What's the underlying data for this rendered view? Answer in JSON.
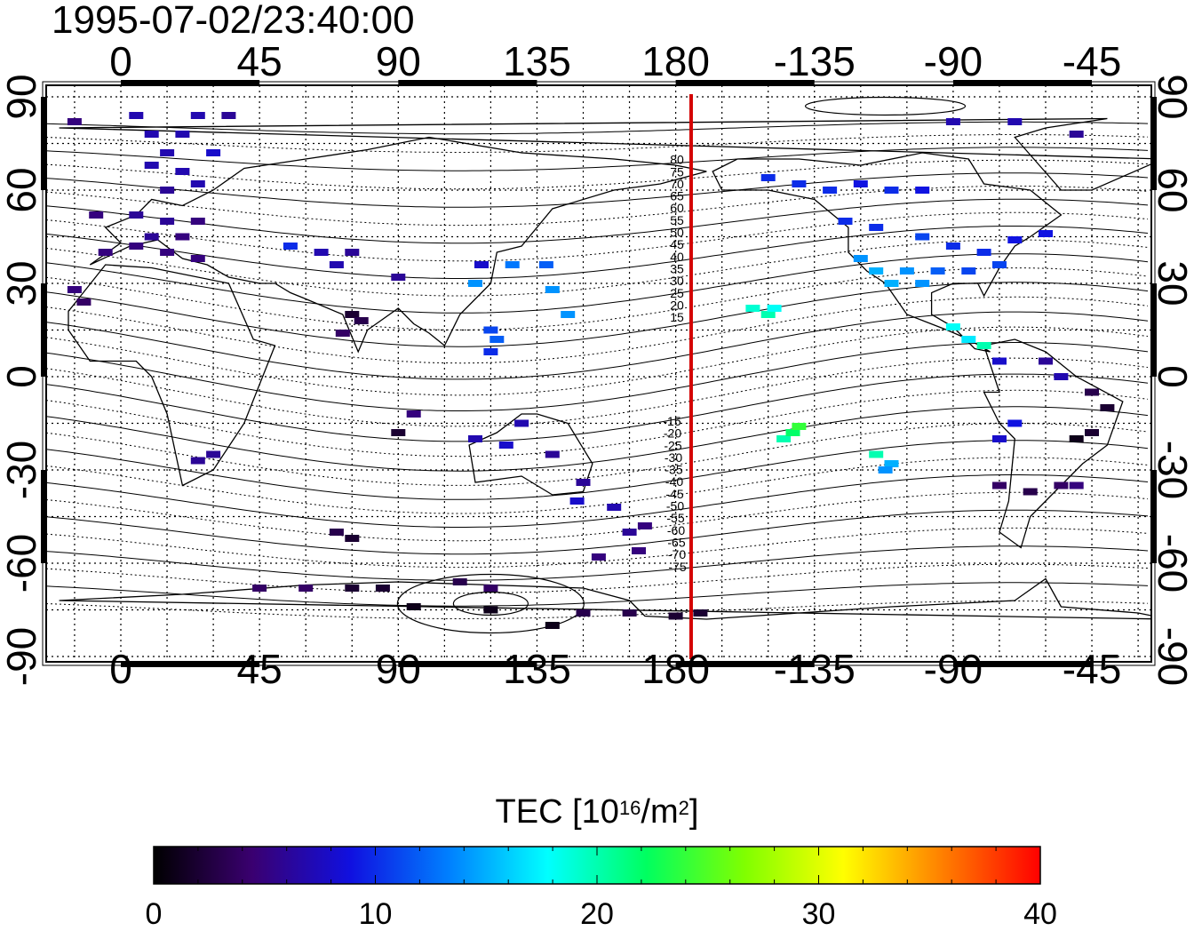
{
  "title": "1995-07-02/23:40:00",
  "map": {
    "lon_ticks_top": [
      "0",
      "45",
      "90",
      "135",
      "180",
      "-135",
      "-90",
      "-45"
    ],
    "lon_ticks_bottom": [
      "0",
      "45",
      "90",
      "135",
      "180",
      "-135",
      "-90",
      "-45"
    ],
    "lat_ticks_left": [
      "90",
      "60",
      "30",
      "0",
      "-30",
      "-60",
      "-90"
    ],
    "lat_ticks_right": [
      "90",
      "60",
      "30",
      "0",
      "-30",
      "-60",
      "-90"
    ],
    "terminator_color": "#d40000",
    "contour_labels": [
      "80",
      "75",
      "70",
      "65",
      "60",
      "55",
      "50",
      "45",
      "40",
      "35",
      "30",
      "25",
      "20",
      "15",
      "-15",
      "-20",
      "-25",
      "-30",
      "-35",
      "-40",
      "-45",
      "-50",
      "-55",
      "-60",
      "-65",
      "-70",
      "-75"
    ]
  },
  "colorbar": {
    "title_prefix": "TEC  [10",
    "title_exp1": "16",
    "title_mid": "/m",
    "title_exp2": "2",
    "title_suffix": "]",
    "ticks": [
      "0",
      "10",
      "20",
      "30",
      "40"
    ],
    "stops": [
      "#000000",
      "#3a0070",
      "#1010e0",
      "#0080ff",
      "#00ffff",
      "#00ff60",
      "#80ff00",
      "#ffff00",
      "#ff8000",
      "#ff0000"
    ]
  },
  "chart_data": {
    "type": "scatter",
    "title": "1995-07-02/23:40:00",
    "xlabel": "",
    "ylabel": "",
    "xlim": [
      -20,
      340
    ],
    "ylim": [
      -90,
      90
    ],
    "grid": true,
    "colorbar_label": "TEC [10^16/m^2]",
    "colorbar_range": [
      0,
      40
    ],
    "terminator_lon": 185,
    "points": [
      {
        "lon": -15,
        "lat": 82,
        "tec": 5
      },
      {
        "lon": 5,
        "lat": 84,
        "tec": 7
      },
      {
        "lon": 25,
        "lat": 84,
        "tec": 7
      },
      {
        "lon": 35,
        "lat": 84,
        "tec": 6
      },
      {
        "lon": 10,
        "lat": 78,
        "tec": 7
      },
      {
        "lon": 20,
        "lat": 78,
        "tec": 7
      },
      {
        "lon": 15,
        "lat": 72,
        "tec": 7
      },
      {
        "lon": 30,
        "lat": 72,
        "tec": 8
      },
      {
        "lon": 10,
        "lat": 68,
        "tec": 7
      },
      {
        "lon": 20,
        "lat": 66,
        "tec": 7
      },
      {
        "lon": 25,
        "lat": 62,
        "tec": 7
      },
      {
        "lon": 15,
        "lat": 60,
        "tec": 6
      },
      {
        "lon": -8,
        "lat": 52,
        "tec": 5
      },
      {
        "lon": 5,
        "lat": 52,
        "tec": 6
      },
      {
        "lon": 15,
        "lat": 50,
        "tec": 6
      },
      {
        "lon": 25,
        "lat": 50,
        "tec": 5
      },
      {
        "lon": 10,
        "lat": 45,
        "tec": 6
      },
      {
        "lon": 20,
        "lat": 45,
        "tec": 5
      },
      {
        "lon": 5,
        "lat": 42,
        "tec": 5
      },
      {
        "lon": 15,
        "lat": 40,
        "tec": 5
      },
      {
        "lon": -5,
        "lat": 40,
        "tec": 5
      },
      {
        "lon": 25,
        "lat": 38,
        "tec": 5
      },
      {
        "lon": -15,
        "lat": 28,
        "tec": 5
      },
      {
        "lon": -12,
        "lat": 24,
        "tec": 4
      },
      {
        "lon": 55,
        "lat": 42,
        "tec": 10
      },
      {
        "lon": 65,
        "lat": 40,
        "tec": 7
      },
      {
        "lon": 70,
        "lat": 36,
        "tec": 7
      },
      {
        "lon": 75,
        "lat": 40,
        "tec": 6
      },
      {
        "lon": 90,
        "lat": 32,
        "tec": 6
      },
      {
        "lon": 75,
        "lat": 20,
        "tec": 2
      },
      {
        "lon": 78,
        "lat": 18,
        "tec": 3
      },
      {
        "lon": 72,
        "lat": 14,
        "tec": 4
      },
      {
        "lon": 117,
        "lat": 36,
        "tec": 8
      },
      {
        "lon": 127,
        "lat": 36,
        "tec": 13
      },
      {
        "lon": 138,
        "lat": 36,
        "tec": 12
      },
      {
        "lon": 115,
        "lat": 30,
        "tec": 14
      },
      {
        "lon": 140,
        "lat": 28,
        "tec": 14
      },
      {
        "lon": 145,
        "lat": 20,
        "tec": 14
      },
      {
        "lon": 120,
        "lat": 15,
        "tec": 11
      },
      {
        "lon": 122,
        "lat": 12,
        "tec": 12
      },
      {
        "lon": 120,
        "lat": 8,
        "tec": 10
      },
      {
        "lon": 95,
        "lat": -12,
        "tec": 5
      },
      {
        "lon": 90,
        "lat": -18,
        "tec": 2
      },
      {
        "lon": 115,
        "lat": -20,
        "tec": 7
      },
      {
        "lon": 125,
        "lat": -22,
        "tec": 8
      },
      {
        "lon": 130,
        "lat": -15,
        "tec": 7
      },
      {
        "lon": 140,
        "lat": -25,
        "tec": 6
      },
      {
        "lon": 150,
        "lat": -34,
        "tec": 6
      },
      {
        "lon": 148,
        "lat": -40,
        "tec": 8
      },
      {
        "lon": 160,
        "lat": -42,
        "tec": 7
      },
      {
        "lon": 165,
        "lat": -50,
        "tec": 6
      },
      {
        "lon": 170,
        "lat": -48,
        "tec": 5
      },
      {
        "lon": 168,
        "lat": -56,
        "tec": 5
      },
      {
        "lon": 155,
        "lat": -58,
        "tec": 5
      },
      {
        "lon": 75,
        "lat": -52,
        "tec": 2
      },
      {
        "lon": 70,
        "lat": -50,
        "tec": 3
      },
      {
        "lon": 25,
        "lat": -27,
        "tec": 6
      },
      {
        "lon": 30,
        "lat": -25,
        "tec": 6
      },
      {
        "lon": 45,
        "lat": -68,
        "tec": 4
      },
      {
        "lon": 60,
        "lat": -68,
        "tec": 4
      },
      {
        "lon": 75,
        "lat": -68,
        "tec": 2
      },
      {
        "lon": 85,
        "lat": -68,
        "tec": 2
      },
      {
        "lon": 110,
        "lat": -66,
        "tec": 3
      },
      {
        "lon": 120,
        "lat": -68,
        "tec": 4
      },
      {
        "lon": 95,
        "lat": -74,
        "tec": 1
      },
      {
        "lon": 120,
        "lat": -75,
        "tec": 1
      },
      {
        "lon": 140,
        "lat": -80,
        "tec": 1
      },
      {
        "lon": 150,
        "lat": -76,
        "tec": 3
      },
      {
        "lon": 165,
        "lat": -76,
        "tec": 3
      },
      {
        "lon": 180,
        "lat": -77,
        "tec": 2
      },
      {
        "lon": 188,
        "lat": -76,
        "tec": 2
      },
      {
        "lon": -155,
        "lat": 22,
        "tec": 19
      },
      {
        "lon": -150,
        "lat": 20,
        "tec": 20
      },
      {
        "lon": -148,
        "lat": 22,
        "tec": 18
      },
      {
        "lon": -145,
        "lat": -20,
        "tec": 20
      },
      {
        "lon": -142,
        "lat": -18,
        "tec": 22
      },
      {
        "lon": -140,
        "lat": -16,
        "tec": 24
      },
      {
        "lon": -115,
        "lat": -25,
        "tec": 20
      },
      {
        "lon": -110,
        "lat": -28,
        "tec": 15
      },
      {
        "lon": -112,
        "lat": -30,
        "tec": 14
      },
      {
        "lon": -150,
        "lat": 64,
        "tec": 10
      },
      {
        "lon": -140,
        "lat": 62,
        "tec": 10
      },
      {
        "lon": -130,
        "lat": 60,
        "tec": 10
      },
      {
        "lon": -120,
        "lat": 62,
        "tec": 9
      },
      {
        "lon": -110,
        "lat": 60,
        "tec": 10
      },
      {
        "lon": -100,
        "lat": 60,
        "tec": 9
      },
      {
        "lon": -90,
        "lat": 82,
        "tec": 7
      },
      {
        "lon": -70,
        "lat": 82,
        "tec": 7
      },
      {
        "lon": -50,
        "lat": 78,
        "tec": 6
      },
      {
        "lon": -125,
        "lat": 50,
        "tec": 10
      },
      {
        "lon": -115,
        "lat": 48,
        "tec": 10
      },
      {
        "lon": -100,
        "lat": 45,
        "tec": 11
      },
      {
        "lon": -90,
        "lat": 42,
        "tec": 10
      },
      {
        "lon": -80,
        "lat": 40,
        "tec": 10
      },
      {
        "lon": -70,
        "lat": 44,
        "tec": 9
      },
      {
        "lon": -60,
        "lat": 46,
        "tec": 9
      },
      {
        "lon": -120,
        "lat": 38,
        "tec": 14
      },
      {
        "lon": -115,
        "lat": 34,
        "tec": 15
      },
      {
        "lon": -105,
        "lat": 34,
        "tec": 14
      },
      {
        "lon": -95,
        "lat": 34,
        "tec": 12
      },
      {
        "lon": -85,
        "lat": 34,
        "tec": 11
      },
      {
        "lon": -75,
        "lat": 36,
        "tec": 11
      },
      {
        "lon": -110,
        "lat": 30,
        "tec": 15
      },
      {
        "lon": -100,
        "lat": 30,
        "tec": 14
      },
      {
        "lon": -90,
        "lat": 16,
        "tec": 18
      },
      {
        "lon": -85,
        "lat": 12,
        "tec": 17
      },
      {
        "lon": -80,
        "lat": 10,
        "tec": 20
      },
      {
        "lon": -75,
        "lat": 5,
        "tec": 8
      },
      {
        "lon": -60,
        "lat": 5,
        "tec": 6
      },
      {
        "lon": -55,
        "lat": 0,
        "tec": 7
      },
      {
        "lon": -45,
        "lat": -5,
        "tec": 3
      },
      {
        "lon": -40,
        "lat": -10,
        "tec": 2
      },
      {
        "lon": -70,
        "lat": -15,
        "tec": 9
      },
      {
        "lon": -75,
        "lat": -20,
        "tec": 8
      },
      {
        "lon": -45,
        "lat": -18,
        "tec": 2
      },
      {
        "lon": -50,
        "lat": -20,
        "tec": 1
      },
      {
        "lon": -75,
        "lat": -35,
        "tec": 4
      },
      {
        "lon": -65,
        "lat": -37,
        "tec": 3
      },
      {
        "lon": -55,
        "lat": -35,
        "tec": 4
      },
      {
        "lon": -50,
        "lat": -35,
        "tec": 5
      }
    ]
  }
}
